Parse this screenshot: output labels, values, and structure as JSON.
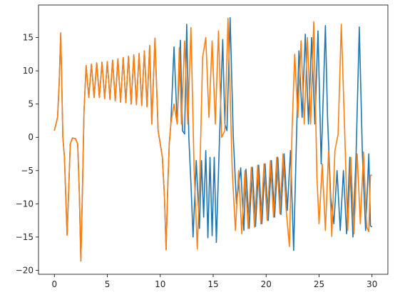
{
  "chart_data": {
    "type": "line",
    "title": "",
    "xlabel": "",
    "ylabel": "",
    "xlim": [
      -1.5,
      31.5
    ],
    "ylim": [
      -20.6,
      19.9
    ],
    "xticks": [
      0,
      5,
      10,
      15,
      20,
      25,
      30
    ],
    "yticks": [
      -20,
      -15,
      -10,
      -5,
      0,
      5,
      10,
      15
    ],
    "grid": false,
    "legend": "none",
    "series": [
      {
        "color": "#1f77b4",
        "x": [
          0.0,
          0.3,
          0.45,
          0.6,
          0.7,
          0.8,
          0.95,
          1.1,
          1.2,
          1.35,
          1.5,
          1.7,
          2.0,
          2.2,
          2.35,
          2.5,
          2.65,
          2.8,
          3.0,
          3.25,
          3.5,
          3.75,
          4.0,
          4.25,
          4.5,
          4.75,
          5.0,
          5.25,
          5.5,
          5.75,
          6.0,
          6.25,
          6.5,
          6.75,
          7.0,
          7.25,
          7.5,
          7.75,
          8.0,
          8.25,
          8.5,
          8.75,
          9.0,
          9.2,
          9.5,
          9.8,
          10.0,
          10.2,
          10.4,
          10.55,
          10.7,
          10.85,
          11.0,
          11.3,
          11.6,
          11.9,
          12.1,
          12.3,
          12.5,
          12.7,
          12.9,
          13.1,
          13.4,
          13.7,
          13.9,
          14.1,
          14.3,
          14.5,
          14.7,
          14.9,
          15.1,
          15.3,
          15.6,
          15.9,
          16.1,
          16.3,
          16.6,
          16.9,
          17.2,
          17.6,
          17.9,
          18.1,
          18.4,
          18.7,
          19.0,
          19.3,
          19.6,
          19.9,
          20.2,
          20.5,
          20.8,
          21.1,
          21.4,
          21.7,
          22.0,
          22.3,
          22.6,
          22.9,
          23.1,
          23.4,
          23.7,
          24.0,
          24.3,
          24.6,
          24.9,
          25.2,
          25.6,
          25.8,
          26.1,
          26.4,
          26.7,
          27.0,
          27.3,
          27.6,
          27.9,
          28.2,
          28.5,
          28.8,
          29.1,
          29.4,
          29.7,
          29.85,
          30.0
        ],
        "y": [
          1.0,
          3.0,
          8.0,
          15.7,
          8.0,
          0.0,
          -3.0,
          -10.0,
          -14.7,
          -8.0,
          -1.0,
          -0.1,
          -0.2,
          -1.0,
          -8.0,
          -18.6,
          -8.0,
          4.0,
          10.8,
          6.0,
          11.0,
          6.0,
          11.2,
          6.0,
          11.3,
          5.8,
          11.4,
          5.7,
          11.6,
          5.5,
          11.8,
          5.3,
          12.0,
          5.2,
          12.2,
          5.0,
          12.4,
          4.9,
          12.6,
          4.8,
          13.0,
          4.6,
          13.8,
          2.0,
          14.9,
          1.0,
          -1.0,
          -3.0,
          -9.0,
          -16.9,
          -8.0,
          -1.0,
          2.0,
          13.6,
          2.0,
          14.6,
          1.0,
          0.5,
          17.0,
          0.0,
          -7.0,
          -15.0,
          -3.5,
          -13.7,
          -3.5,
          -12.0,
          -2.0,
          -15.1,
          -3.0,
          -14.8,
          -3.0,
          -15.8,
          0.0,
          14.7,
          2.0,
          1.0,
          18.0,
          0.0,
          -10.0,
          -4.6,
          -14.0,
          -4.8,
          -13.7,
          -4.5,
          -13.4,
          -4.2,
          -13.0,
          -4.0,
          -12.5,
          -3.5,
          -12.0,
          -3.0,
          -11.6,
          -2.5,
          -11.0,
          -2.0,
          -17.0,
          2.0,
          13.0,
          3.0,
          15.5,
          2.0,
          15.0,
          2.0,
          16.0,
          -4.0,
          16.8,
          3.0,
          -9.0,
          -13.0,
          -5.0,
          -14.0,
          -5.0,
          -14.5,
          -3.0,
          -15.0,
          -2.5,
          16.6,
          -3.0,
          -14.0,
          -2.5,
          -13.3,
          -13.5
        ]
      },
      {
        "color": "#ff7f0e",
        "x": [
          0.0,
          0.3,
          0.45,
          0.6,
          0.7,
          0.8,
          0.95,
          1.1,
          1.2,
          1.35,
          1.5,
          1.7,
          2.0,
          2.2,
          2.35,
          2.5,
          2.65,
          2.8,
          3.0,
          3.25,
          3.5,
          3.75,
          4.0,
          4.25,
          4.5,
          4.75,
          5.0,
          5.25,
          5.5,
          5.75,
          6.0,
          6.25,
          6.5,
          6.75,
          7.0,
          7.25,
          7.5,
          7.75,
          8.0,
          8.25,
          8.5,
          8.75,
          9.0,
          9.2,
          9.5,
          9.8,
          10.0,
          10.2,
          10.4,
          10.55,
          10.7,
          10.85,
          11.0,
          11.3,
          11.6,
          11.8,
          12.0,
          12.3,
          12.6,
          12.9,
          13.2,
          13.5,
          13.75,
          14.0,
          14.3,
          14.6,
          14.9,
          15.2,
          15.5,
          15.8,
          16.1,
          16.4,
          16.8,
          17.1,
          17.4,
          17.7,
          18.0,
          18.3,
          18.6,
          18.9,
          19.2,
          19.5,
          19.8,
          20.1,
          20.4,
          20.7,
          21.0,
          21.3,
          21.6,
          21.9,
          22.2,
          22.45,
          22.7,
          23.0,
          23.3,
          23.6,
          23.9,
          24.2,
          24.5,
          24.8,
          25.0,
          25.3,
          25.6,
          25.9,
          26.2,
          26.5,
          26.8,
          27.1,
          27.4,
          27.7,
          28.0,
          28.3,
          28.6,
          28.9,
          29.2,
          29.5,
          29.7,
          29.85,
          30.0
        ],
        "y": [
          1.0,
          3.0,
          8.0,
          15.7,
          8.0,
          0.0,
          -3.0,
          -10.0,
          -14.7,
          -8.0,
          -1.0,
          -0.1,
          -0.2,
          -1.0,
          -8.0,
          -18.6,
          -8.0,
          4.0,
          10.8,
          6.0,
          11.0,
          6.0,
          11.2,
          6.0,
          11.3,
          5.8,
          11.4,
          5.7,
          11.6,
          5.5,
          11.8,
          5.3,
          12.0,
          5.2,
          12.2,
          5.0,
          12.4,
          4.9,
          12.6,
          4.8,
          13.0,
          4.6,
          13.8,
          2.0,
          14.9,
          1.0,
          -1.0,
          -3.0,
          -9.0,
          -16.9,
          -8.0,
          -1.0,
          2.0,
          5.0,
          2.0,
          13.5,
          2.0,
          14.5,
          2.0,
          16.5,
          -5.0,
          -16.8,
          -5.0,
          12.0,
          15.0,
          3.0,
          14.5,
          2.0,
          16.0,
          0.0,
          1.0,
          17.9,
          -5.0,
          -14.0,
          -5.0,
          -14.5,
          -5.0,
          -13.7,
          -4.5,
          -13.5,
          -4.2,
          -13.0,
          -4.0,
          -12.5,
          -3.5,
          -12.0,
          -3.0,
          -11.5,
          -2.5,
          -11.0,
          -16.4,
          1.0,
          12.5,
          3.0,
          14.5,
          2.0,
          15.0,
          2.0,
          17.4,
          -6.0,
          -13.0,
          -4.0,
          -14.0,
          -2.0,
          -14.9,
          -2.0,
          0.5,
          17.0,
          2.0,
          -14.0,
          -3.0,
          -14.5,
          -2.5,
          -13.0,
          -2.2,
          -13.5,
          -14.2,
          -5.7,
          -5.7
        ]
      }
    ]
  }
}
